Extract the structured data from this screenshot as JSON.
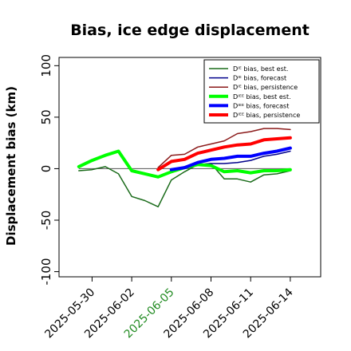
{
  "chart_data": {
    "type": "line",
    "title": "Bias, ice edge displacement",
    "xlabel": "",
    "ylabel": "Displacement bias (km)",
    "ylim": [
      -105,
      108
    ],
    "yticks": [
      100,
      50,
      0,
      -50,
      -100
    ],
    "x_ticks": [
      "2025-05-30",
      "2025-06-02",
      "2025-06-05",
      "2025-06-08",
      "2025-06-11",
      "2025-06-14"
    ],
    "highlight_tick": "2025-06-05",
    "highlight_color": "#228B22",
    "zero_line": true,
    "legend_position": "top-right",
    "series": [
      {
        "name": "Dᴵᴱ bias, best est.",
        "color": "#1a6b1a",
        "width": 1.5,
        "x": [
          "2025-05-29",
          "2025-05-30",
          "2025-05-31",
          "2025-06-01",
          "2025-06-02",
          "2025-06-03",
          "2025-06-04",
          "2025-06-05",
          "2025-06-06",
          "2025-06-07",
          "2025-06-08",
          "2025-06-09",
          "2025-06-10",
          "2025-06-11",
          "2025-06-12",
          "2025-06-13",
          "2025-06-14"
        ],
        "y": [
          -2,
          -1,
          2,
          -5,
          -27,
          -31,
          -37,
          -11,
          -3,
          4,
          5,
          -10,
          -10,
          -13,
          -6,
          -5,
          -2
        ]
      },
      {
        "name": "Dᴵᴱ bias, forecast",
        "color": "#00008b",
        "width": 1.5,
        "x": [
          "2025-06-05",
          "2025-06-06",
          "2025-06-07",
          "2025-06-08",
          "2025-06-09",
          "2025-06-10",
          "2025-06-11",
          "2025-06-12",
          "2025-06-13",
          "2025-06-14"
        ],
        "y": [
          -3,
          1,
          4,
          5,
          5,
          6,
          8,
          12,
          14,
          17
        ]
      },
      {
        "name": "Dᴵᴱ bias, persistence",
        "color": "#8b1a1a",
        "width": 1.5,
        "x": [
          "2025-06-04",
          "2025-06-05",
          "2025-06-06",
          "2025-06-07",
          "2025-06-08",
          "2025-06-09",
          "2025-06-10",
          "2025-06-11",
          "2025-06-12",
          "2025-06-13",
          "2025-06-14"
        ],
        "y": [
          1,
          13,
          14,
          21,
          24,
          27,
          34,
          36,
          39,
          39,
          38
        ]
      },
      {
        "name": "Dᴵᴱᴱ bias, best est.",
        "color": "#00ff00",
        "width": 4,
        "x": [
          "2025-05-29",
          "2025-05-30",
          "2025-05-31",
          "2025-06-01",
          "2025-06-02",
          "2025-06-03",
          "2025-06-04",
          "2025-06-05",
          "2025-06-06",
          "2025-06-07",
          "2025-06-08",
          "2025-06-09",
          "2025-06-10",
          "2025-06-11",
          "2025-06-12",
          "2025-06-13",
          "2025-06-14"
        ],
        "y": [
          2,
          8,
          13,
          17,
          -2,
          -5,
          -8,
          -3,
          1,
          4,
          3,
          -3,
          -2,
          -4,
          -2,
          -2,
          -1
        ]
      },
      {
        "name": "Dᴵᴱᴱ bias, forecast",
        "color": "#0000ff",
        "width": 4,
        "x": [
          "2025-06-05",
          "2025-06-06",
          "2025-06-07",
          "2025-06-08",
          "2025-06-09",
          "2025-06-10",
          "2025-06-11",
          "2025-06-12",
          "2025-06-13",
          "2025-06-14"
        ],
        "y": [
          -1,
          1,
          6,
          9,
          10,
          12,
          12,
          15,
          17,
          20
        ]
      },
      {
        "name": "Dᴵᴱᴱ bias, persistence",
        "color": "#ff0000",
        "width": 4,
        "x": [
          "2025-06-04",
          "2025-06-05",
          "2025-06-06",
          "2025-06-07",
          "2025-06-08",
          "2025-06-09",
          "2025-06-10",
          "2025-06-11",
          "2025-06-12",
          "2025-06-13",
          "2025-06-14"
        ],
        "y": [
          -1,
          7,
          9,
          15,
          18,
          21,
          23,
          24,
          28,
          29,
          30
        ]
      }
    ]
  }
}
